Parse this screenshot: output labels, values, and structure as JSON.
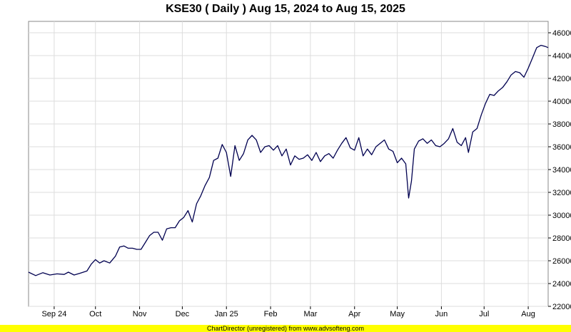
{
  "chart_data": {
    "type": "line",
    "title": "KSE30 ( Daily ) Aug 15, 2024 to Aug 15, 2025",
    "xlabel": "",
    "ylabel": "",
    "x_range": [
      "2024-08-15",
      "2025-08-15"
    ],
    "ylim": [
      22000,
      47000
    ],
    "y_ticks": [
      22000,
      24000,
      26000,
      28000,
      30000,
      32000,
      34000,
      36000,
      38000,
      40000,
      42000,
      44000,
      46000
    ],
    "x_ticks": [
      {
        "label": "Sep 24",
        "date": "2024-09-02"
      },
      {
        "label": "Oct",
        "date": "2024-10-01"
      },
      {
        "label": "Nov",
        "date": "2024-11-01"
      },
      {
        "label": "Dec",
        "date": "2024-12-01"
      },
      {
        "label": "Jan 25",
        "date": "2025-01-01"
      },
      {
        "label": "Feb",
        "date": "2025-02-01"
      },
      {
        "label": "Mar",
        "date": "2025-03-01"
      },
      {
        "label": "Apr",
        "date": "2025-04-01"
      },
      {
        "label": "May",
        "date": "2025-05-01"
      },
      {
        "label": "Jun",
        "date": "2025-06-01"
      },
      {
        "label": "Jul",
        "date": "2025-07-01"
      },
      {
        "label": "Aug",
        "date": "2025-08-01"
      }
    ],
    "grid": true,
    "y_axis_side": "right",
    "line_color": "#000050",
    "series": [
      {
        "name": "",
        "points": [
          [
            "2024-08-15",
            25000
          ],
          [
            "2024-08-20",
            24700
          ],
          [
            "2024-08-25",
            24950
          ],
          [
            "2024-08-30",
            24750
          ],
          [
            "2024-09-04",
            24850
          ],
          [
            "2024-09-09",
            24800
          ],
          [
            "2024-09-12",
            25000
          ],
          [
            "2024-09-16",
            24750
          ],
          [
            "2024-09-20",
            24900
          ],
          [
            "2024-09-25",
            25100
          ],
          [
            "2024-09-28",
            25700
          ],
          [
            "2024-10-01",
            26100
          ],
          [
            "2024-10-04",
            25800
          ],
          [
            "2024-10-07",
            26000
          ],
          [
            "2024-10-11",
            25800
          ],
          [
            "2024-10-15",
            26400
          ],
          [
            "2024-10-18",
            27200
          ],
          [
            "2024-10-21",
            27300
          ],
          [
            "2024-10-24",
            27100
          ],
          [
            "2024-10-27",
            27100
          ],
          [
            "2024-10-30",
            27000
          ],
          [
            "2024-11-02",
            27000
          ],
          [
            "2024-11-05",
            27600
          ],
          [
            "2024-11-08",
            28200
          ],
          [
            "2024-11-11",
            28500
          ],
          [
            "2024-11-14",
            28500
          ],
          [
            "2024-11-17",
            27800
          ],
          [
            "2024-11-20",
            28800
          ],
          [
            "2024-11-23",
            28900
          ],
          [
            "2024-11-26",
            28900
          ],
          [
            "2024-11-29",
            29500
          ],
          [
            "2024-12-02",
            29800
          ],
          [
            "2024-12-05",
            30400
          ],
          [
            "2024-12-08",
            29400
          ],
          [
            "2024-12-11",
            31000
          ],
          [
            "2024-12-14",
            31700
          ],
          [
            "2024-12-17",
            32600
          ],
          [
            "2024-12-20",
            33300
          ],
          [
            "2024-12-23",
            34800
          ],
          [
            "2024-12-26",
            35000
          ],
          [
            "2024-12-29",
            36200
          ],
          [
            "2025-01-01",
            35500
          ],
          [
            "2025-01-04",
            33400
          ],
          [
            "2025-01-07",
            36100
          ],
          [
            "2025-01-10",
            34800
          ],
          [
            "2025-01-13",
            35400
          ],
          [
            "2025-01-16",
            36600
          ],
          [
            "2025-01-19",
            37000
          ],
          [
            "2025-01-22",
            36600
          ],
          [
            "2025-01-25",
            35500
          ],
          [
            "2025-01-28",
            36000
          ],
          [
            "2025-01-31",
            36100
          ],
          [
            "2025-02-03",
            35700
          ],
          [
            "2025-02-06",
            36100
          ],
          [
            "2025-02-09",
            35200
          ],
          [
            "2025-02-12",
            35800
          ],
          [
            "2025-02-15",
            34400
          ],
          [
            "2025-02-18",
            35200
          ],
          [
            "2025-02-21",
            34900
          ],
          [
            "2025-02-24",
            35000
          ],
          [
            "2025-02-27",
            35300
          ],
          [
            "2025-03-02",
            34800
          ],
          [
            "2025-03-05",
            35500
          ],
          [
            "2025-03-08",
            34700
          ],
          [
            "2025-03-11",
            35200
          ],
          [
            "2025-03-14",
            35400
          ],
          [
            "2025-03-17",
            35000
          ],
          [
            "2025-03-20",
            35700
          ],
          [
            "2025-03-23",
            36300
          ],
          [
            "2025-03-26",
            36800
          ],
          [
            "2025-03-29",
            35900
          ],
          [
            "2025-04-01",
            35700
          ],
          [
            "2025-04-04",
            36800
          ],
          [
            "2025-04-07",
            35200
          ],
          [
            "2025-04-10",
            35800
          ],
          [
            "2025-04-13",
            35300
          ],
          [
            "2025-04-16",
            36000
          ],
          [
            "2025-04-19",
            36300
          ],
          [
            "2025-04-22",
            36600
          ],
          [
            "2025-04-25",
            35800
          ],
          [
            "2025-04-28",
            35600
          ],
          [
            "2025-05-01",
            34600
          ],
          [
            "2025-05-04",
            35000
          ],
          [
            "2025-05-07",
            34500
          ],
          [
            "2025-05-09",
            31500
          ],
          [
            "2025-05-11",
            33000
          ],
          [
            "2025-05-13",
            35800
          ],
          [
            "2025-05-16",
            36500
          ],
          [
            "2025-05-19",
            36700
          ],
          [
            "2025-05-22",
            36300
          ],
          [
            "2025-05-25",
            36600
          ],
          [
            "2025-05-28",
            36100
          ],
          [
            "2025-05-31",
            36000
          ],
          [
            "2025-06-03",
            36300
          ],
          [
            "2025-06-06",
            36700
          ],
          [
            "2025-06-09",
            37600
          ],
          [
            "2025-06-12",
            36400
          ],
          [
            "2025-06-15",
            36100
          ],
          [
            "2025-06-18",
            36800
          ],
          [
            "2025-06-20",
            35500
          ],
          [
            "2025-06-23",
            37300
          ],
          [
            "2025-06-26",
            37600
          ],
          [
            "2025-06-29",
            38800
          ],
          [
            "2025-07-02",
            39800
          ],
          [
            "2025-07-05",
            40600
          ],
          [
            "2025-07-08",
            40500
          ],
          [
            "2025-07-11",
            40900
          ],
          [
            "2025-07-14",
            41200
          ],
          [
            "2025-07-17",
            41700
          ],
          [
            "2025-07-20",
            42300
          ],
          [
            "2025-07-23",
            42600
          ],
          [
            "2025-07-26",
            42500
          ],
          [
            "2025-07-29",
            42100
          ],
          [
            "2025-08-01",
            42900
          ],
          [
            "2025-08-04",
            43800
          ],
          [
            "2025-08-07",
            44700
          ],
          [
            "2025-08-10",
            44900
          ],
          [
            "2025-08-13",
            44800
          ],
          [
            "2025-08-15",
            44700
          ]
        ]
      }
    ]
  },
  "footer_text": "ChartDirector (unregistered) from www.advsofteng.com"
}
